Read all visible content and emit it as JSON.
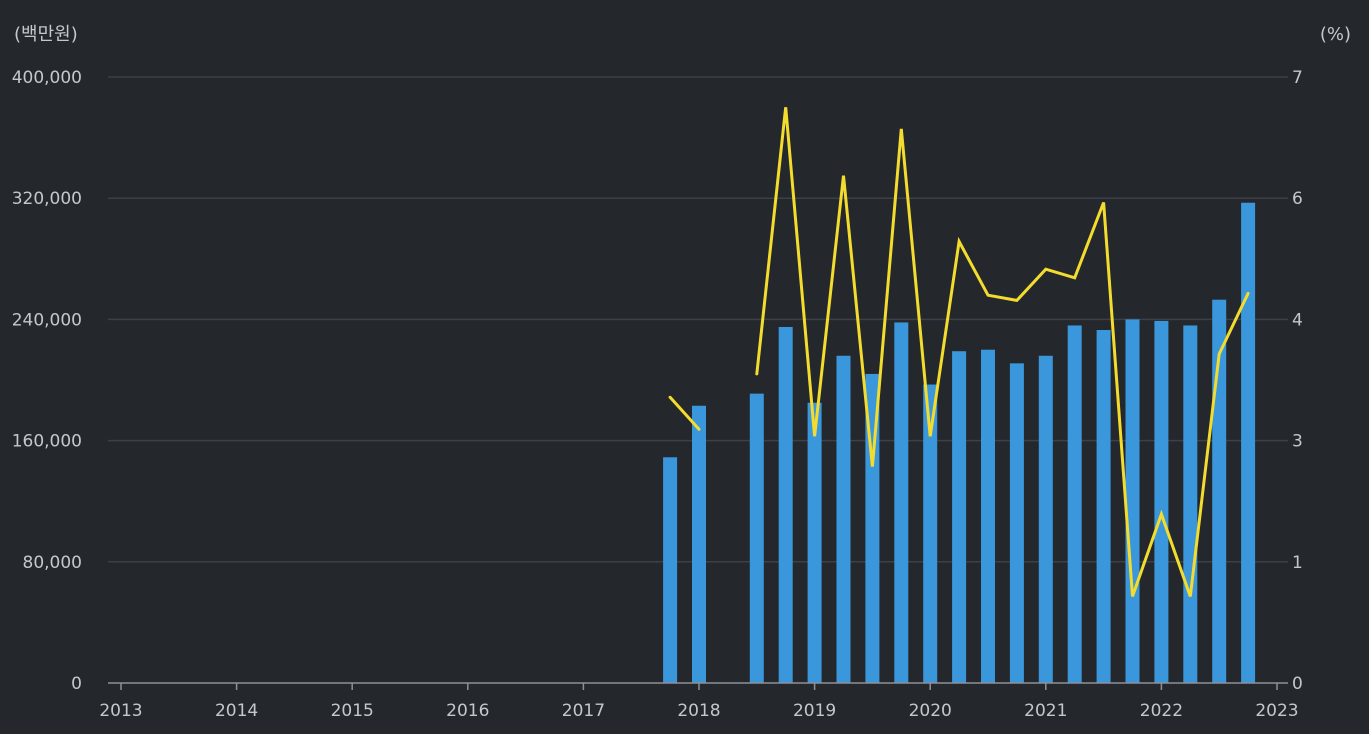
{
  "chart_data": {
    "type": "bar",
    "left_unit": "(백만원)",
    "right_unit": "(%)",
    "x_ticks": [
      "2013",
      "2014",
      "2015",
      "2016",
      "2017",
      "2018",
      "2019",
      "2020",
      "2021",
      "2022",
      "2023"
    ],
    "y_left_ticks": [
      "0",
      "80,000",
      "160,000",
      "240,000",
      "320,000",
      "400,000"
    ],
    "y_right_ticks": [
      "0",
      "1",
      "3",
      "4",
      "6",
      "7"
    ],
    "y_left_range": [
      0,
      400000
    ],
    "y_right_range": [
      0,
      7
    ],
    "grid": true,
    "colors": {
      "bars": "#3a97dc",
      "line": "#f4dc2e",
      "grid": "#3c4047",
      "axis": "#8e9198"
    },
    "series": [
      {
        "type": "bar",
        "axis": "left",
        "points": [
          {
            "x": 2017.75,
            "y": 149000
          },
          {
            "x": 2018.0,
            "y": 183000
          },
          {
            "x": 2018.5,
            "y": 191000
          },
          {
            "x": 2018.75,
            "y": 235000
          },
          {
            "x": 2019.0,
            "y": 185000
          },
          {
            "x": 2019.25,
            "y": 216000
          },
          {
            "x": 2019.5,
            "y": 204000
          },
          {
            "x": 2019.75,
            "y": 238000
          },
          {
            "x": 2020.0,
            "y": 197000
          },
          {
            "x": 2020.25,
            "y": 219000
          },
          {
            "x": 2020.5,
            "y": 220000
          },
          {
            "x": 2020.75,
            "y": 211000
          },
          {
            "x": 2021.0,
            "y": 216000
          },
          {
            "x": 2021.25,
            "y": 236000
          },
          {
            "x": 2021.5,
            "y": 233000
          },
          {
            "x": 2021.75,
            "y": 240000
          },
          {
            "x": 2022.0,
            "y": 239000
          },
          {
            "x": 2022.25,
            "y": 236000
          },
          {
            "x": 2022.5,
            "y": 253000
          },
          {
            "x": 2022.75,
            "y": 317000
          }
        ]
      },
      {
        "type": "line",
        "axis": "right",
        "segments": [
          [
            {
              "x": 2017.75,
              "y": 3.3
            },
            {
              "x": 2018.0,
              "y": 2.93
            }
          ],
          [
            {
              "x": 2018.5,
              "y": 3.57
            },
            {
              "x": 2018.75,
              "y": 6.65
            },
            {
              "x": 2019.0,
              "y": 2.85
            },
            {
              "x": 2019.25,
              "y": 5.86
            },
            {
              "x": 2019.5,
              "y": 2.5
            },
            {
              "x": 2019.75,
              "y": 6.4
            },
            {
              "x": 2020.0,
              "y": 2.85
            },
            {
              "x": 2020.25,
              "y": 5.1
            },
            {
              "x": 2020.5,
              "y": 4.48
            },
            {
              "x": 2020.75,
              "y": 4.42
            },
            {
              "x": 2021.0,
              "y": 4.78
            },
            {
              "x": 2021.25,
              "y": 4.68
            },
            {
              "x": 2021.5,
              "y": 5.55
            },
            {
              "x": 2021.75,
              "y": 1.0
            },
            {
              "x": 2022.0,
              "y": 1.95
            },
            {
              "x": 2022.25,
              "y": 1.0
            },
            {
              "x": 2022.5,
              "y": 3.8
            },
            {
              "x": 2022.75,
              "y": 4.5
            }
          ]
        ]
      }
    ]
  }
}
